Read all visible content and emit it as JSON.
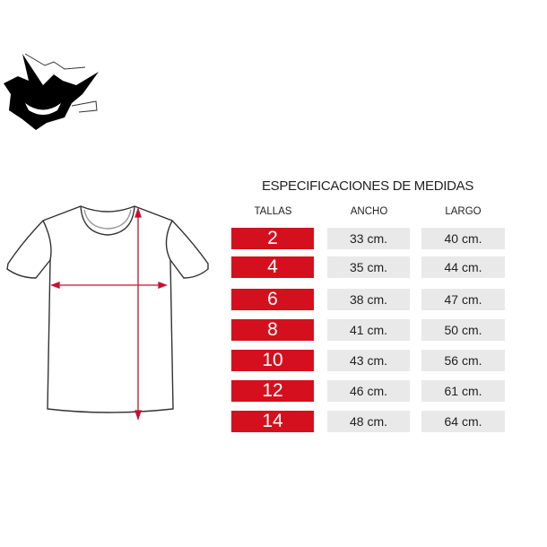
{
  "title": "ESPECIFICACIONES DE MEDIDAS",
  "headers": {
    "size": "TALLAS",
    "width": "ANCHO",
    "length": "LARGO"
  },
  "colors": {
    "size_bg": "#d4101e",
    "value_bg": "#e9e9e9",
    "arrow": "#c8102e"
  },
  "rows": [
    {
      "size": "2",
      "width": "33 cm.",
      "length": "40 cm."
    },
    {
      "size": "4",
      "width": "35 cm.",
      "length": "44 cm."
    },
    {
      "size": "6",
      "width": "38 cm.",
      "length": "47 cm."
    },
    {
      "size": "8",
      "width": "41 cm.",
      "length": "50 cm."
    },
    {
      "size": "10",
      "width": "43 cm.",
      "length": "56 cm."
    },
    {
      "size": "12",
      "width": "46 cm.",
      "length": "61 cm."
    },
    {
      "size": "14",
      "width": "48 cm.",
      "length": "64 cm."
    }
  ]
}
